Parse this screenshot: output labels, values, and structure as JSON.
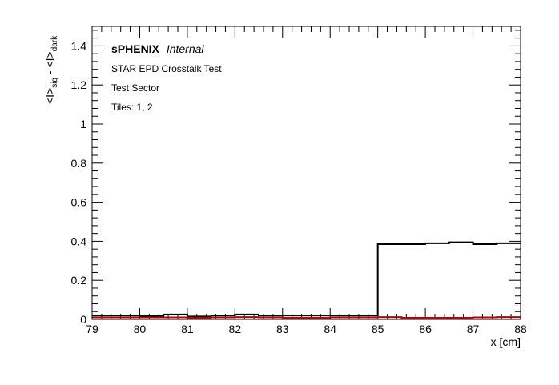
{
  "chart_data": {
    "type": "line",
    "step": true,
    "title": "",
    "xlabel": "x [cm]",
    "ylabel": {
      "base": "<I>",
      "sig_sub": "sig",
      "minus": " - ",
      "dark_sub": "dark"
    },
    "xlim": [
      79,
      88
    ],
    "ylim": [
      0,
      1.5
    ],
    "x_ticks": [
      "79",
      "80",
      "81",
      "82",
      "83",
      "84",
      "85",
      "86",
      "87",
      "88"
    ],
    "y_ticks": [
      "0",
      "0.2",
      "0.4",
      "0.6",
      "0.8",
      "1",
      "1.2",
      "1.4"
    ],
    "annotations": {
      "experiment_bold": "sPHENIX",
      "experiment_italic": "Internal",
      "line1": "STAR EPD Crosstalk Test",
      "line2": "Test Sector",
      "line3": "Tiles: 1, 2"
    },
    "bin_edges": [
      79,
      79.5,
      80,
      80.5,
      81,
      81.5,
      82,
      82.5,
      83,
      83.5,
      84,
      84.5,
      85,
      85.5,
      86,
      86.5,
      87,
      87.5,
      88
    ],
    "series": [
      {
        "color": "#000000",
        "values": [
          0.02,
          0.02,
          0.018,
          0.025,
          0.015,
          0.02,
          0.025,
          0.02,
          0.02,
          0.02,
          0.02,
          0.02,
          0.385,
          0.385,
          0.39,
          0.395,
          0.385,
          0.39
        ]
      },
      {
        "color": "#c00000",
        "values": [
          0.01,
          0.01,
          0.01,
          0.01,
          0.008,
          0.01,
          0.012,
          0.01,
          0.008,
          0.008,
          0.01,
          0.01,
          0.012,
          0.008,
          0.008,
          0.008,
          0.01,
          0.012
        ]
      }
    ]
  }
}
